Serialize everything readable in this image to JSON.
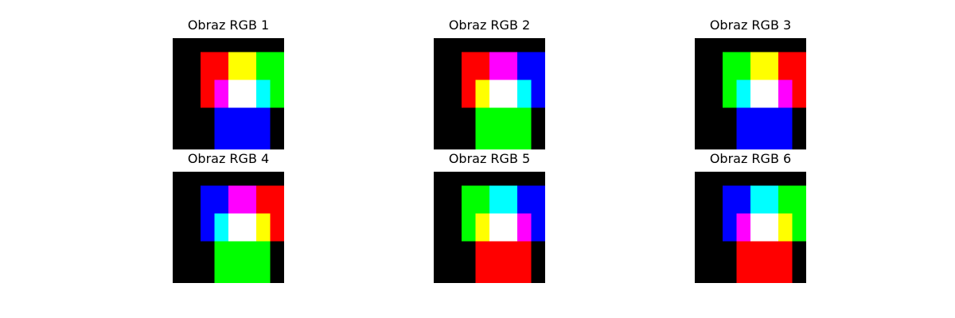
{
  "figure": {
    "panels": [
      {
        "title": "Obraz RGB 1",
        "grid": [
          [
            "#000000",
            "#000000",
            "#000000",
            "#000000",
            "#000000",
            "#000000",
            "#000000",
            "#000000"
          ],
          [
            "#000000",
            "#000000",
            "#ff0000",
            "#ff0000",
            "#ffff00",
            "#ffff00",
            "#00ff00",
            "#00ff00"
          ],
          [
            "#000000",
            "#000000",
            "#ff0000",
            "#ff0000",
            "#ffff00",
            "#ffff00",
            "#00ff00",
            "#00ff00"
          ],
          [
            "#000000",
            "#000000",
            "#ff0000",
            "#ff00ff",
            "#ffffff",
            "#ffffff",
            "#00ffff",
            "#00ff00"
          ],
          [
            "#000000",
            "#000000",
            "#ff0000",
            "#ff00ff",
            "#ffffff",
            "#ffffff",
            "#00ffff",
            "#00ff00"
          ],
          [
            "#000000",
            "#000000",
            "#000000",
            "#0000ff",
            "#0000ff",
            "#0000ff",
            "#0000ff",
            "#000000"
          ],
          [
            "#000000",
            "#000000",
            "#000000",
            "#0000ff",
            "#0000ff",
            "#0000ff",
            "#0000ff",
            "#000000"
          ],
          [
            "#000000",
            "#000000",
            "#000000",
            "#0000ff",
            "#0000ff",
            "#0000ff",
            "#0000ff",
            "#000000"
          ]
        ]
      },
      {
        "title": "Obraz RGB 2",
        "grid": [
          [
            "#000000",
            "#000000",
            "#000000",
            "#000000",
            "#000000",
            "#000000",
            "#000000",
            "#000000"
          ],
          [
            "#000000",
            "#000000",
            "#ff0000",
            "#ff0000",
            "#ff00ff",
            "#ff00ff",
            "#0000ff",
            "#0000ff"
          ],
          [
            "#000000",
            "#000000",
            "#ff0000",
            "#ff0000",
            "#ff00ff",
            "#ff00ff",
            "#0000ff",
            "#0000ff"
          ],
          [
            "#000000",
            "#000000",
            "#ff0000",
            "#ffff00",
            "#ffffff",
            "#ffffff",
            "#00ffff",
            "#0000ff"
          ],
          [
            "#000000",
            "#000000",
            "#ff0000",
            "#ffff00",
            "#ffffff",
            "#ffffff",
            "#00ffff",
            "#0000ff"
          ],
          [
            "#000000",
            "#000000",
            "#000000",
            "#00ff00",
            "#00ff00",
            "#00ff00",
            "#00ff00",
            "#000000"
          ],
          [
            "#000000",
            "#000000",
            "#000000",
            "#00ff00",
            "#00ff00",
            "#00ff00",
            "#00ff00",
            "#000000"
          ],
          [
            "#000000",
            "#000000",
            "#000000",
            "#00ff00",
            "#00ff00",
            "#00ff00",
            "#00ff00",
            "#000000"
          ]
        ]
      },
      {
        "title": "Obraz RGB 3",
        "grid": [
          [
            "#000000",
            "#000000",
            "#000000",
            "#000000",
            "#000000",
            "#000000",
            "#000000",
            "#000000"
          ],
          [
            "#000000",
            "#000000",
            "#00ff00",
            "#00ff00",
            "#ffff00",
            "#ffff00",
            "#ff0000",
            "#ff0000"
          ],
          [
            "#000000",
            "#000000",
            "#00ff00",
            "#00ff00",
            "#ffff00",
            "#ffff00",
            "#ff0000",
            "#ff0000"
          ],
          [
            "#000000",
            "#000000",
            "#00ff00",
            "#00ffff",
            "#ffffff",
            "#ffffff",
            "#ff00ff",
            "#ff0000"
          ],
          [
            "#000000",
            "#000000",
            "#00ff00",
            "#00ffff",
            "#ffffff",
            "#ffffff",
            "#ff00ff",
            "#ff0000"
          ],
          [
            "#000000",
            "#000000",
            "#000000",
            "#0000ff",
            "#0000ff",
            "#0000ff",
            "#0000ff",
            "#000000"
          ],
          [
            "#000000",
            "#000000",
            "#000000",
            "#0000ff",
            "#0000ff",
            "#0000ff",
            "#0000ff",
            "#000000"
          ],
          [
            "#000000",
            "#000000",
            "#000000",
            "#0000ff",
            "#0000ff",
            "#0000ff",
            "#0000ff",
            "#000000"
          ]
        ]
      },
      {
        "title": "Obraz RGB 4",
        "grid": [
          [
            "#000000",
            "#000000",
            "#000000",
            "#000000",
            "#000000",
            "#000000",
            "#000000",
            "#000000"
          ],
          [
            "#000000",
            "#000000",
            "#0000ff",
            "#0000ff",
            "#ff00ff",
            "#ff00ff",
            "#ff0000",
            "#ff0000"
          ],
          [
            "#000000",
            "#000000",
            "#0000ff",
            "#0000ff",
            "#ff00ff",
            "#ff00ff",
            "#ff0000",
            "#ff0000"
          ],
          [
            "#000000",
            "#000000",
            "#0000ff",
            "#00ffff",
            "#ffffff",
            "#ffffff",
            "#ffff00",
            "#ff0000"
          ],
          [
            "#000000",
            "#000000",
            "#0000ff",
            "#00ffff",
            "#ffffff",
            "#ffffff",
            "#ffff00",
            "#ff0000"
          ],
          [
            "#000000",
            "#000000",
            "#000000",
            "#00ff00",
            "#00ff00",
            "#00ff00",
            "#00ff00",
            "#000000"
          ],
          [
            "#000000",
            "#000000",
            "#000000",
            "#00ff00",
            "#00ff00",
            "#00ff00",
            "#00ff00",
            "#000000"
          ],
          [
            "#000000",
            "#000000",
            "#000000",
            "#00ff00",
            "#00ff00",
            "#00ff00",
            "#00ff00",
            "#000000"
          ]
        ]
      },
      {
        "title": "Obraz RGB 5",
        "grid": [
          [
            "#000000",
            "#000000",
            "#000000",
            "#000000",
            "#000000",
            "#000000",
            "#000000",
            "#000000"
          ],
          [
            "#000000",
            "#000000",
            "#00ff00",
            "#00ff00",
            "#00ffff",
            "#00ffff",
            "#0000ff",
            "#0000ff"
          ],
          [
            "#000000",
            "#000000",
            "#00ff00",
            "#00ff00",
            "#00ffff",
            "#00ffff",
            "#0000ff",
            "#0000ff"
          ],
          [
            "#000000",
            "#000000",
            "#00ff00",
            "#ffff00",
            "#ffffff",
            "#ffffff",
            "#ff00ff",
            "#0000ff"
          ],
          [
            "#000000",
            "#000000",
            "#00ff00",
            "#ffff00",
            "#ffffff",
            "#ffffff",
            "#ff00ff",
            "#0000ff"
          ],
          [
            "#000000",
            "#000000",
            "#000000",
            "#ff0000",
            "#ff0000",
            "#ff0000",
            "#ff0000",
            "#000000"
          ],
          [
            "#000000",
            "#000000",
            "#000000",
            "#ff0000",
            "#ff0000",
            "#ff0000",
            "#ff0000",
            "#000000"
          ],
          [
            "#000000",
            "#000000",
            "#000000",
            "#ff0000",
            "#ff0000",
            "#ff0000",
            "#ff0000",
            "#000000"
          ]
        ]
      },
      {
        "title": "Obraz RGB 6",
        "grid": [
          [
            "#000000",
            "#000000",
            "#000000",
            "#000000",
            "#000000",
            "#000000",
            "#000000",
            "#000000"
          ],
          [
            "#000000",
            "#000000",
            "#0000ff",
            "#0000ff",
            "#00ffff",
            "#00ffff",
            "#00ff00",
            "#00ff00"
          ],
          [
            "#000000",
            "#000000",
            "#0000ff",
            "#0000ff",
            "#00ffff",
            "#00ffff",
            "#00ff00",
            "#00ff00"
          ],
          [
            "#000000",
            "#000000",
            "#0000ff",
            "#ff00ff",
            "#ffffff",
            "#ffffff",
            "#ffff00",
            "#00ff00"
          ],
          [
            "#000000",
            "#000000",
            "#0000ff",
            "#ff00ff",
            "#ffffff",
            "#ffffff",
            "#ffff00",
            "#00ff00"
          ],
          [
            "#000000",
            "#000000",
            "#000000",
            "#ff0000",
            "#ff0000",
            "#ff0000",
            "#ff0000",
            "#000000"
          ],
          [
            "#000000",
            "#000000",
            "#000000",
            "#ff0000",
            "#ff0000",
            "#ff0000",
            "#ff0000",
            "#000000"
          ],
          [
            "#000000",
            "#000000",
            "#000000",
            "#ff0000",
            "#ff0000",
            "#ff0000",
            "#ff0000",
            "#000000"
          ]
        ]
      }
    ]
  }
}
